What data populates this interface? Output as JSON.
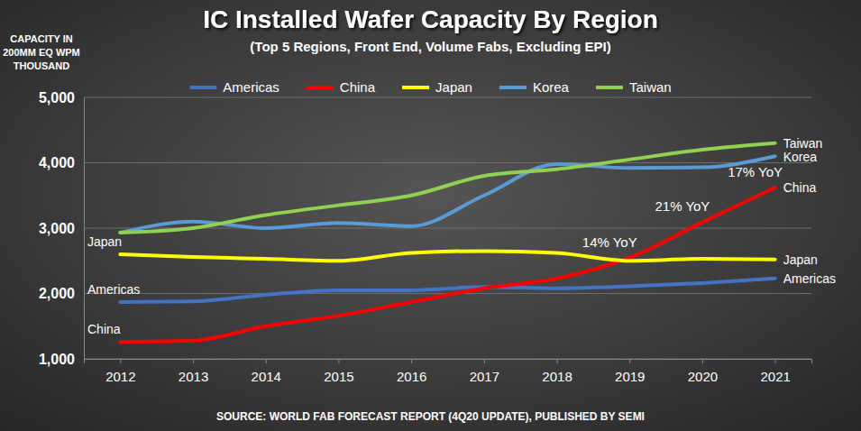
{
  "chart_data": {
    "type": "line",
    "title": "IC Installed Wafer Capacity By Region",
    "subtitle": "(Top 5 Regions, Front End, Volume Fabs, Excluding EPI)",
    "y_label": "CAPACITY IN 200MM EQ WPM THOUSAND",
    "source": "SOURCE: WORLD FAB FORECAST REPORT (4Q20 UPDATE), PUBLISHED BY SEMI",
    "categories": [
      "2012",
      "2013",
      "2014",
      "2015",
      "2016",
      "2017",
      "2018",
      "2019",
      "2020",
      "2021"
    ],
    "series": [
      {
        "name": "Americas",
        "color": "#4472c4",
        "values": [
          1870,
          1880,
          1980,
          2050,
          2050,
          2100,
          2080,
          2110,
          2160,
          2230
        ]
      },
      {
        "name": "China",
        "color": "#ff0000",
        "values": [
          1260,
          1280,
          1500,
          1660,
          1870,
          2080,
          2230,
          2550,
          3090,
          3620
        ]
      },
      {
        "name": "Japan",
        "color": "#ffff00",
        "values": [
          2600,
          2560,
          2530,
          2500,
          2620,
          2650,
          2620,
          2500,
          2530,
          2520
        ]
      },
      {
        "name": "Korea",
        "color": "#5b9bd5",
        "values": [
          2930,
          3100,
          3000,
          3080,
          3030,
          3500,
          3980,
          3920,
          3930,
          4100
        ]
      },
      {
        "name": "Taiwan",
        "color": "#92d050",
        "values": [
          2930,
          3000,
          3200,
          3350,
          3500,
          3800,
          3900,
          4050,
          4200,
          4300
        ]
      }
    ],
    "ylim": [
      1000,
      5000
    ],
    "yticks": [
      {
        "value": 1000,
        "label": "1,000"
      },
      {
        "value": 2000,
        "label": "2,000"
      },
      {
        "value": 3000,
        "label": "3,000"
      },
      {
        "value": 4000,
        "label": "4,000"
      },
      {
        "value": 5000,
        "label": "5,000"
      }
    ],
    "grid": true,
    "legend": "top",
    "annotations": [
      {
        "text": "14% YoY",
        "x": "2019",
        "series": "China"
      },
      {
        "text": "21% YoY",
        "x": "2020",
        "series": "China"
      },
      {
        "text": "17% YoY",
        "x": "2021",
        "series": "China"
      }
    ]
  }
}
